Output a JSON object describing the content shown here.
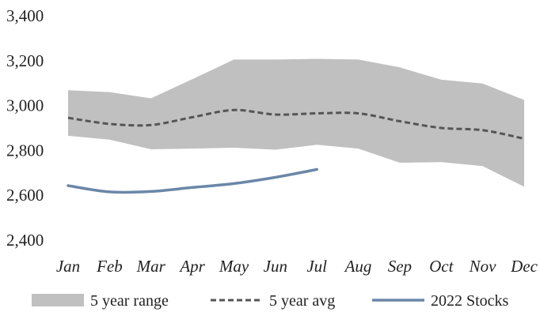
{
  "chart_data": {
    "type": "line",
    "categories": [
      "Jan",
      "Feb",
      "Mar",
      "Apr",
      "May",
      "Jun",
      "Jul",
      "Aug",
      "Sep",
      "Oct",
      "Nov",
      "Dec"
    ],
    "ylim": [
      2400,
      3400
    ],
    "yticks": [
      "2,400",
      "2,600",
      "2,800",
      "3,000",
      "3,200",
      "3,400"
    ],
    "grid": false,
    "legend_position": "bottom",
    "series": [
      {
        "name": "5 year range",
        "kind": "band",
        "color": "#c0c0c0",
        "upper": [
          3068,
          3060,
          3032,
          3118,
          3205,
          3205,
          3208,
          3205,
          3170,
          3115,
          3098,
          3025
        ],
        "lower": [
          2865,
          2848,
          2805,
          2808,
          2812,
          2803,
          2825,
          2808,
          2745,
          2748,
          2730,
          2638
        ]
      },
      {
        "name": "5 year avg",
        "kind": "dashed",
        "color": "#555555",
        "values": [
          2945,
          2918,
          2913,
          2948,
          2980,
          2960,
          2965,
          2965,
          2930,
          2900,
          2890,
          2852
        ]
      },
      {
        "name": "2022 Stocks",
        "kind": "line",
        "color": "#6b87a8",
        "values": [
          2643,
          2615,
          2617,
          2635,
          2652,
          2680,
          2715,
          null,
          null,
          null,
          null,
          null
        ]
      }
    ]
  }
}
